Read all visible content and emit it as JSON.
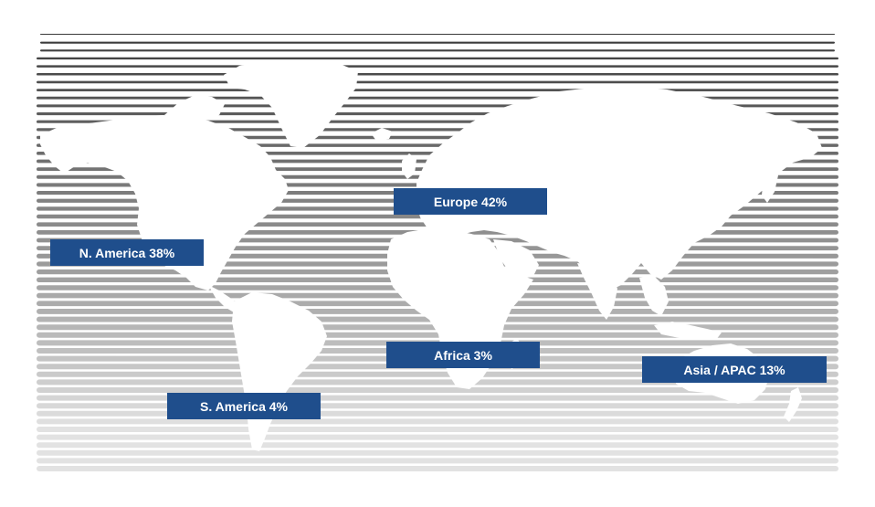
{
  "map": {
    "style": "horizontal-stripe world map, white landmasses",
    "stripe_colors": {
      "top": "#3a3a3a",
      "bottom": "#e2e2e2"
    },
    "label_color": "#1f4e8c",
    "regions": [
      {
        "key": "europe",
        "label": "Europe 42%",
        "share": 42
      },
      {
        "key": "namerica",
        "label": "N. America 38%",
        "share": 38
      },
      {
        "key": "africa",
        "label": "Africa 3%",
        "share": 3
      },
      {
        "key": "asia",
        "label": "Asia / APAC 13%",
        "share": 13
      },
      {
        "key": "samerica",
        "label": "S. America 4%",
        "share": 4
      }
    ]
  }
}
